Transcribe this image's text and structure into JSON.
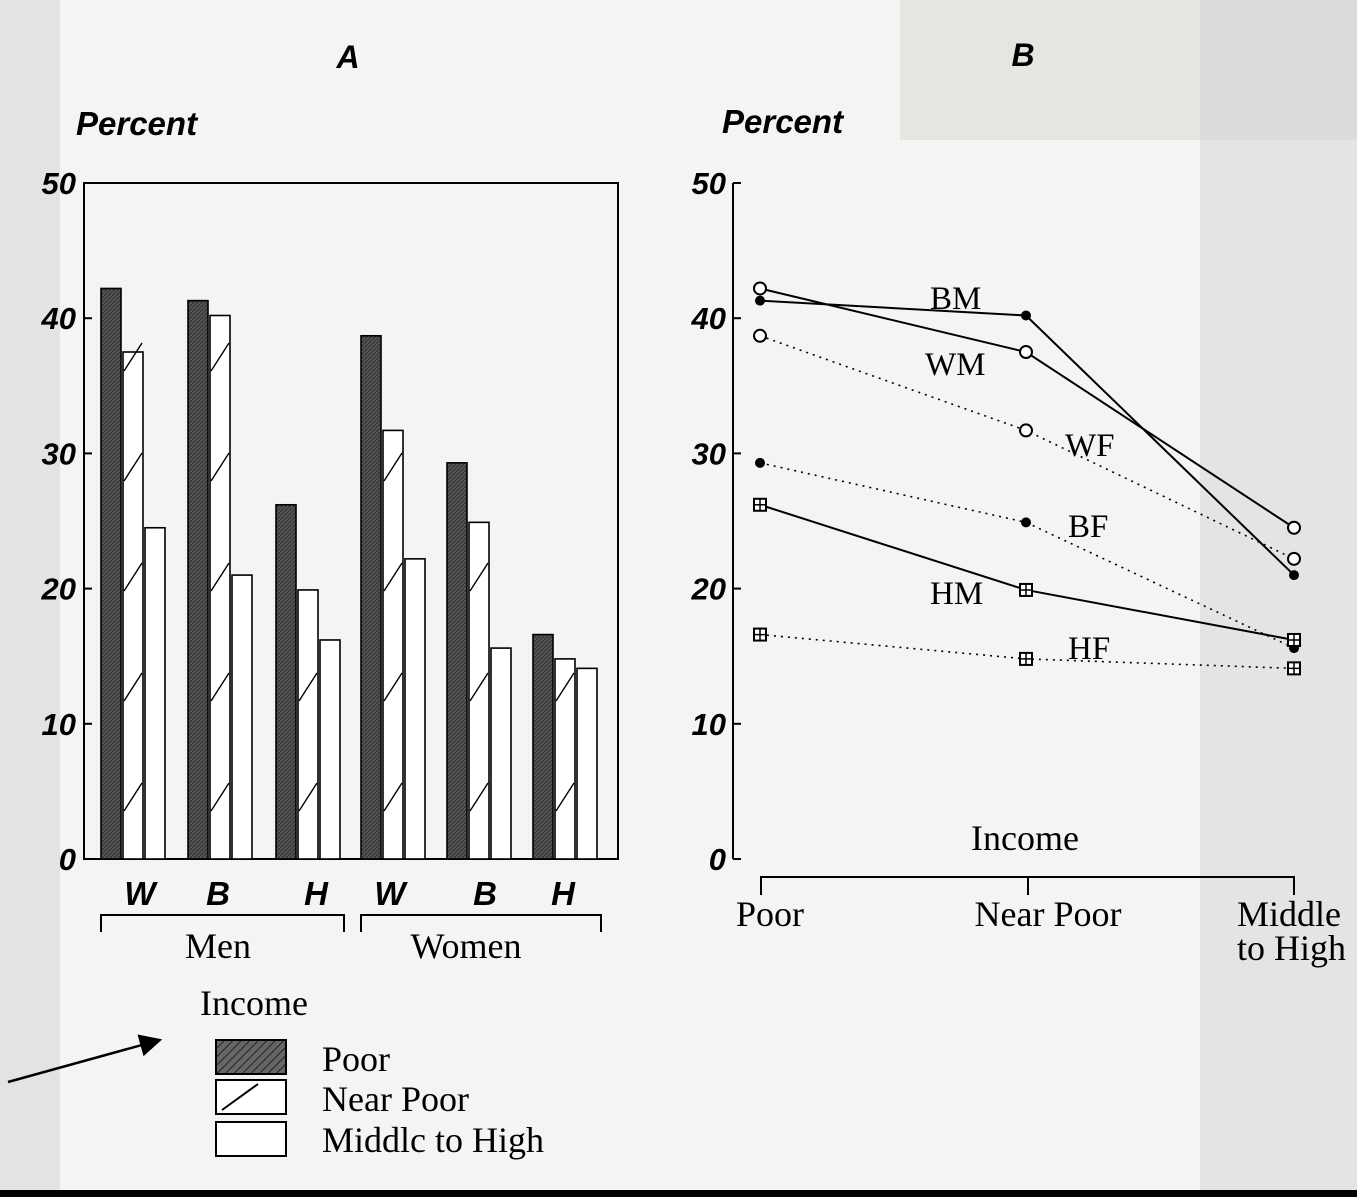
{
  "panel_a": {
    "panel_label": "A",
    "ylabel": "Percent",
    "ytick_labels": [
      "0",
      "10",
      "20",
      "30",
      "40",
      "50"
    ],
    "group_labels": [
      "W",
      "B",
      "H",
      "W",
      "B",
      "H"
    ],
    "sex_labels": [
      "Men",
      "Women"
    ],
    "legend_title": "Income",
    "legend_items": [
      "Poor",
      "Near Poor",
      "Middlc to High"
    ]
  },
  "panel_b": {
    "panel_label": "B",
    "ylabel": "Percent",
    "ytick_labels": [
      "0",
      "10",
      "20",
      "30",
      "40",
      "50"
    ],
    "xlabel": "Income",
    "xtick_labels": [
      "Poor",
      "Near Poor",
      "Middle",
      "to High"
    ],
    "series_labels": [
      "BM",
      "WM",
      "WF",
      "BF",
      "HM",
      "HF"
    ]
  },
  "chart_data": [
    {
      "type": "bar",
      "title": "A",
      "ylabel": "Percent",
      "ylim": [
        0,
        50
      ],
      "categories": [
        "W",
        "B",
        "H",
        "W",
        "B",
        "H"
      ],
      "groups": [
        "Men",
        "Men",
        "Men",
        "Women",
        "Women",
        "Women"
      ],
      "legend_title": "Income",
      "legend_position": "bottom-left",
      "series": [
        {
          "name": "Poor",
          "pattern": "solid-dark",
          "values": [
            42.2,
            41.3,
            26.2,
            38.7,
            29.3,
            16.6
          ]
        },
        {
          "name": "Near Poor",
          "pattern": "diagonal-hatch",
          "values": [
            37.5,
            40.2,
            19.9,
            31.7,
            24.9,
            14.8
          ]
        },
        {
          "name": "Middlc to High",
          "pattern": "white",
          "values": [
            24.5,
            21.0,
            16.2,
            22.2,
            15.6,
            14.1
          ]
        }
      ]
    },
    {
      "type": "line",
      "title": "B",
      "ylabel": "Percent",
      "xlabel": "Income",
      "ylim": [
        0,
        50
      ],
      "x": [
        "Poor",
        "Near Poor",
        "Middle to High"
      ],
      "series": [
        {
          "name": "BM",
          "line": "solid",
          "marker": "filled-dot",
          "values": [
            41.3,
            40.2,
            21.0
          ]
        },
        {
          "name": "WM",
          "line": "solid",
          "marker": "open-circle",
          "values": [
            42.2,
            37.5,
            24.5
          ]
        },
        {
          "name": "WF",
          "line": "dotted",
          "marker": "open-circle",
          "values": [
            38.7,
            31.7,
            22.2
          ]
        },
        {
          "name": "BF",
          "line": "dotted",
          "marker": "filled-dot",
          "values": [
            29.3,
            24.9,
            15.6
          ]
        },
        {
          "name": "HM",
          "line": "solid",
          "marker": "boxed-plus",
          "values": [
            26.2,
            19.9,
            16.2
          ]
        },
        {
          "name": "HF",
          "line": "dotted",
          "marker": "boxed-plus",
          "values": [
            16.6,
            14.8,
            14.1
          ]
        }
      ]
    }
  ]
}
